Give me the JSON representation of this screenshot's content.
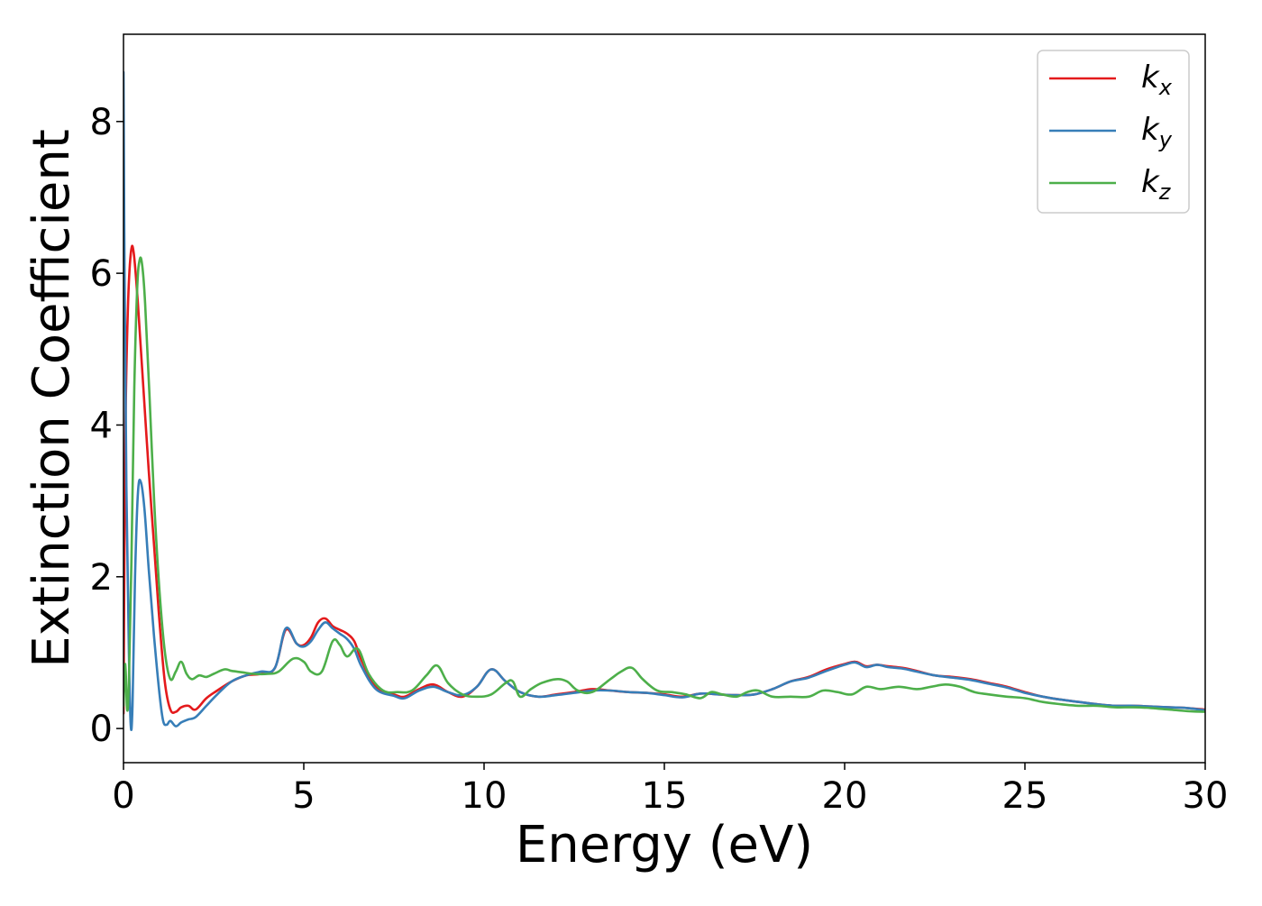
{
  "chart_data": {
    "type": "line",
    "title": "",
    "xlabel": "Energy (eV)",
    "ylabel": "Extinction Coefficient",
    "xlim": [
      0,
      30
    ],
    "ylim": [
      -0.45,
      9.15
    ],
    "xticks": [
      0,
      5,
      10,
      15,
      20,
      25,
      30
    ],
    "xtick_labels": [
      "0",
      "5",
      "10",
      "15",
      "20",
      "25",
      "30"
    ],
    "yticks": [
      0,
      2,
      4,
      6,
      8
    ],
    "ytick_labels": [
      "0",
      "2",
      "4",
      "6",
      "8"
    ],
    "grid": false,
    "legend_position": "top-right",
    "colors": {
      "kx": "#e41a1c",
      "ky": "#377eb8",
      "kz": "#4daf4a"
    },
    "series": [
      {
        "key": "kx",
        "name": "k",
        "subscript": "x",
        "color": "#e41a1c",
        "x": [
          0,
          0.05,
          0.12,
          0.2,
          0.28,
          0.4,
          0.55,
          0.7,
          0.85,
          1.0,
          1.15,
          1.3,
          1.45,
          1.6,
          1.8,
          2.0,
          2.3,
          2.6,
          3.0,
          3.4,
          3.8,
          4.2,
          4.5,
          4.8,
          5.0,
          5.2,
          5.4,
          5.6,
          5.8,
          6.0,
          6.2,
          6.4,
          6.6,
          7.0,
          7.5,
          7.8,
          8.2,
          8.6,
          9.0,
          9.4,
          9.8,
          10.2,
          10.6,
          11.0,
          11.5,
          12.0,
          12.5,
          13.0,
          13.5,
          14.0,
          14.5,
          15.0,
          15.5,
          16.0,
          16.5,
          17.0,
          17.5,
          18.0,
          18.5,
          19.0,
          19.5,
          20.0,
          20.3,
          20.6,
          20.9,
          21.2,
          21.6,
          22.0,
          22.5,
          23.0,
          23.5,
          24.0,
          24.5,
          25.0,
          25.5,
          26.0,
          26.5,
          27.0,
          27.5,
          28.0,
          28.5,
          29.0,
          29.5,
          30.0
        ],
        "y": [
          0.2,
          3.8,
          5.5,
          6.25,
          6.28,
          5.6,
          4.5,
          3.4,
          2.4,
          1.4,
          0.6,
          0.25,
          0.22,
          0.28,
          0.3,
          0.25,
          0.4,
          0.5,
          0.62,
          0.7,
          0.72,
          0.8,
          1.3,
          1.12,
          1.1,
          1.2,
          1.4,
          1.45,
          1.35,
          1.3,
          1.25,
          1.15,
          0.9,
          0.55,
          0.45,
          0.42,
          0.52,
          0.58,
          0.48,
          0.42,
          0.55,
          0.78,
          0.62,
          0.48,
          0.42,
          0.45,
          0.48,
          0.52,
          0.5,
          0.48,
          0.47,
          0.45,
          0.42,
          0.46,
          0.45,
          0.44,
          0.45,
          0.52,
          0.62,
          0.68,
          0.78,
          0.85,
          0.88,
          0.82,
          0.84,
          0.82,
          0.8,
          0.76,
          0.7,
          0.68,
          0.65,
          0.6,
          0.55,
          0.48,
          0.42,
          0.38,
          0.35,
          0.32,
          0.3,
          0.3,
          0.29,
          0.28,
          0.27,
          0.25
        ]
      },
      {
        "key": "ky",
        "name": "k",
        "subscript": "y",
        "color": "#377eb8",
        "x": [
          0,
          0.03,
          0.08,
          0.15,
          0.2,
          0.25,
          0.32,
          0.4,
          0.48,
          0.58,
          0.7,
          0.85,
          1.0,
          1.1,
          1.2,
          1.3,
          1.45,
          1.6,
          1.8,
          2.0,
          2.3,
          2.6,
          3.0,
          3.4,
          3.8,
          4.2,
          4.5,
          4.8,
          5.0,
          5.2,
          5.4,
          5.6,
          5.8,
          6.0,
          6.2,
          6.4,
          6.6,
          7.0,
          7.5,
          7.8,
          8.2,
          8.6,
          9.0,
          9.4,
          9.8,
          10.2,
          10.6,
          11.0,
          11.5,
          12.0,
          12.5,
          13.0,
          13.5,
          14.0,
          14.5,
          15.0,
          15.5,
          16.0,
          16.5,
          17.0,
          17.5,
          18.0,
          18.5,
          19.0,
          19.5,
          20.0,
          20.3,
          20.6,
          20.9,
          21.2,
          21.6,
          22.0,
          22.5,
          23.0,
          23.5,
          24.0,
          24.5,
          25.0,
          25.5,
          26.0,
          26.5,
          27.0,
          27.5,
          28.0,
          28.5,
          29.0,
          29.5,
          30.0
        ],
        "y": [
          8.65,
          6.0,
          3.2,
          1.0,
          0.05,
          0.3,
          2.0,
          3.1,
          3.25,
          2.9,
          2.1,
          1.2,
          0.45,
          0.1,
          0.05,
          0.1,
          0.03,
          0.08,
          0.12,
          0.15,
          0.3,
          0.45,
          0.62,
          0.7,
          0.75,
          0.8,
          1.32,
          1.12,
          1.08,
          1.15,
          1.3,
          1.4,
          1.32,
          1.25,
          1.18,
          1.05,
          0.82,
          0.52,
          0.43,
          0.4,
          0.5,
          0.55,
          0.48,
          0.44,
          0.55,
          0.78,
          0.62,
          0.48,
          0.42,
          0.44,
          0.47,
          0.5,
          0.5,
          0.48,
          0.47,
          0.44,
          0.41,
          0.46,
          0.45,
          0.44,
          0.45,
          0.52,
          0.62,
          0.67,
          0.76,
          0.84,
          0.87,
          0.81,
          0.84,
          0.81,
          0.79,
          0.75,
          0.7,
          0.67,
          0.64,
          0.59,
          0.54,
          0.47,
          0.42,
          0.38,
          0.35,
          0.32,
          0.3,
          0.3,
          0.29,
          0.28,
          0.27,
          0.24
        ]
      },
      {
        "key": "kz",
        "name": "k",
        "subscript": "z",
        "color": "#4daf4a",
        "x": [
          0,
          0.05,
          0.1,
          0.15,
          0.22,
          0.3,
          0.38,
          0.45,
          0.52,
          0.6,
          0.72,
          0.85,
          1.0,
          1.15,
          1.3,
          1.45,
          1.6,
          1.75,
          1.9,
          2.1,
          2.3,
          2.5,
          2.8,
          3.0,
          3.3,
          3.6,
          4.0,
          4.3,
          4.7,
          5.0,
          5.2,
          5.5,
          5.8,
          6.0,
          6.2,
          6.5,
          6.8,
          7.2,
          7.6,
          8.0,
          8.4,
          8.7,
          9.0,
          9.4,
          9.8,
          10.2,
          10.6,
          10.8,
          11.0,
          11.3,
          11.6,
          12.0,
          12.3,
          12.6,
          13.0,
          13.5,
          13.8,
          14.1,
          14.4,
          14.8,
          15.2,
          15.6,
          16.0,
          16.3,
          16.6,
          17.0,
          17.3,
          17.6,
          18.0,
          18.5,
          19.0,
          19.4,
          19.8,
          20.2,
          20.6,
          21.0,
          21.5,
          22.0,
          22.4,
          22.8,
          23.2,
          23.6,
          24.0,
          24.5,
          25.0,
          25.5,
          26.0,
          26.5,
          27.0,
          27.5,
          28.0,
          28.5,
          29.0,
          29.5,
          30.0
        ],
        "y": [
          0.3,
          0.85,
          0.25,
          0.6,
          2.2,
          4.5,
          5.8,
          6.18,
          6.1,
          5.6,
          4.4,
          3.0,
          1.8,
          1.0,
          0.65,
          0.75,
          0.88,
          0.72,
          0.65,
          0.7,
          0.68,
          0.72,
          0.78,
          0.76,
          0.74,
          0.72,
          0.72,
          0.75,
          0.92,
          0.88,
          0.75,
          0.75,
          1.15,
          1.1,
          0.95,
          1.05,
          0.72,
          0.5,
          0.48,
          0.5,
          0.7,
          0.83,
          0.6,
          0.45,
          0.42,
          0.45,
          0.6,
          0.62,
          0.42,
          0.52,
          0.6,
          0.65,
          0.62,
          0.5,
          0.48,
          0.65,
          0.75,
          0.8,
          0.65,
          0.5,
          0.48,
          0.45,
          0.4,
          0.48,
          0.45,
          0.42,
          0.48,
          0.5,
          0.42,
          0.42,
          0.42,
          0.5,
          0.48,
          0.45,
          0.55,
          0.52,
          0.55,
          0.52,
          0.55,
          0.58,
          0.55,
          0.48,
          0.45,
          0.42,
          0.4,
          0.35,
          0.32,
          0.3,
          0.3,
          0.28,
          0.28,
          0.27,
          0.25,
          0.23,
          0.22
        ]
      }
    ]
  }
}
